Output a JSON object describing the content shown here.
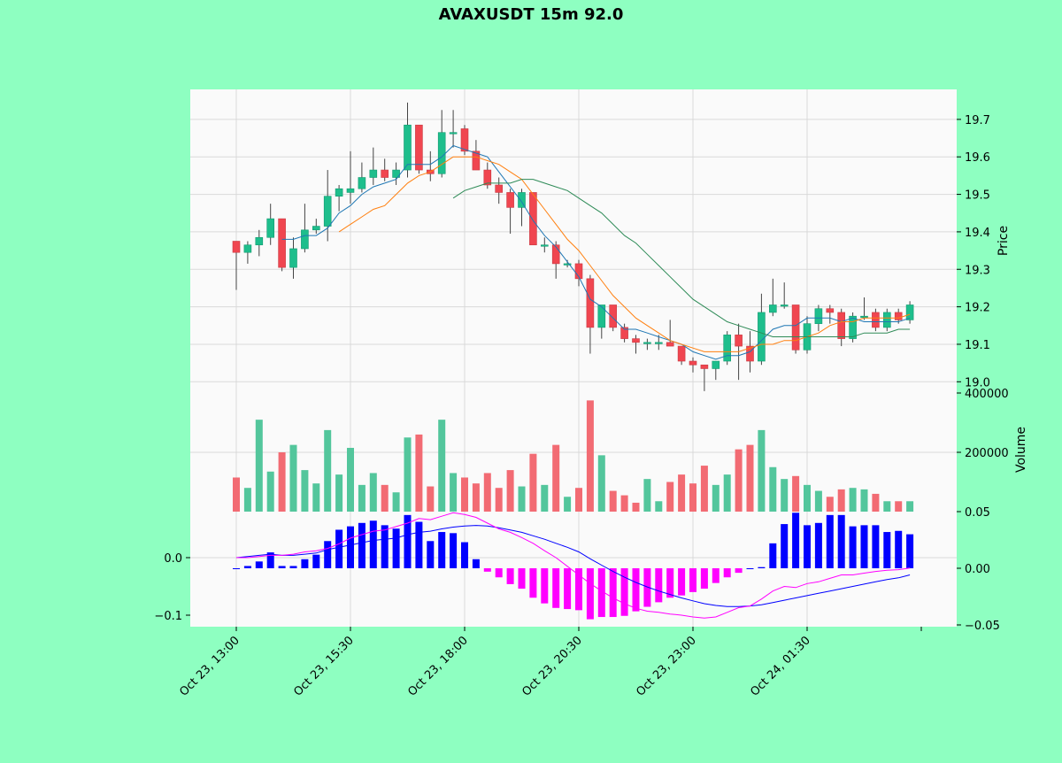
{
  "title": "AVAXUSDT 15m 92.0",
  "colors": {
    "background": "#8effc1",
    "panel": "#fafafa",
    "grid": "#d9d9d9",
    "up": "#1ebe8c",
    "down": "#f04650",
    "wick": "#444444",
    "vol_up": "#53c69c",
    "vol_down": "#f26b73",
    "ma_fast": "#1f77b4",
    "ma_mid": "#ff7f0e",
    "ma_slow": "#2e8b57",
    "macd_line": "#0000ff",
    "signal_line": "#ff00ff",
    "hist_pos": "#0000ff",
    "hist_neg": "#ff00ff"
  },
  "chart_data": {
    "type": "candlestick",
    "x_tick_labels": [
      "Oct 23, 13:00",
      "Oct 23, 15:30",
      "Oct 23, 18:00",
      "Oct 23, 20:30",
      "Oct 23, 23:00",
      "Oct 24, 01:30"
    ],
    "x_tick_indices": [
      0,
      10,
      20,
      30,
      40,
      50
    ],
    "price": {
      "ylabel": "Price",
      "ylim": [
        18.97,
        19.78
      ],
      "ticks": [
        "19.0",
        "19.1",
        "19.2",
        "19.3",
        "19.4",
        "19.5",
        "19.6",
        "19.7"
      ],
      "tick_values": [
        19.0,
        19.1,
        19.2,
        19.3,
        19.4,
        19.5,
        19.6,
        19.7
      ],
      "candles": [
        [
          19.375,
          19.375,
          19.245,
          19.345
        ],
        [
          19.345,
          19.375,
          19.315,
          19.365
        ],
        [
          19.365,
          19.405,
          19.335,
          19.385
        ],
        [
          19.385,
          19.475,
          19.365,
          19.435
        ],
        [
          19.435,
          19.435,
          19.295,
          19.305
        ],
        [
          19.305,
          19.385,
          19.275,
          19.355
        ],
        [
          19.355,
          19.475,
          19.345,
          19.405
        ],
        [
          19.405,
          19.435,
          19.395,
          19.415
        ],
        [
          19.415,
          19.565,
          19.375,
          19.495
        ],
        [
          19.495,
          19.525,
          19.455,
          19.515
        ],
        [
          19.505,
          19.615,
          19.475,
          19.515
        ],
        [
          19.515,
          19.585,
          19.505,
          19.545
        ],
        [
          19.545,
          19.625,
          19.525,
          19.565
        ],
        [
          19.565,
          19.595,
          19.535,
          19.545
        ],
        [
          19.545,
          19.585,
          19.525,
          19.565
        ],
        [
          19.565,
          19.745,
          19.545,
          19.685
        ],
        [
          19.685,
          19.685,
          19.555,
          19.565
        ],
        [
          19.565,
          19.615,
          19.535,
          19.555
        ],
        [
          19.555,
          19.725,
          19.545,
          19.665
        ],
        [
          19.665,
          19.725,
          19.625,
          19.665
        ],
        [
          19.675,
          19.685,
          19.605,
          19.615
        ],
        [
          19.615,
          19.645,
          19.565,
          19.565
        ],
        [
          19.565,
          19.585,
          19.515,
          19.525
        ],
        [
          19.525,
          19.545,
          19.475,
          19.505
        ],
        [
          19.505,
          19.515,
          19.395,
          19.465
        ],
        [
          19.465,
          19.515,
          19.415,
          19.505
        ],
        [
          19.505,
          19.505,
          19.365,
          19.365
        ],
        [
          19.365,
          19.385,
          19.345,
          19.365
        ],
        [
          19.365,
          19.375,
          19.275,
          19.315
        ],
        [
          19.315,
          19.325,
          19.305,
          19.315
        ],
        [
          19.315,
          19.325,
          19.255,
          19.275
        ],
        [
          19.275,
          19.285,
          19.075,
          19.145
        ],
        [
          19.145,
          19.205,
          19.115,
          19.205
        ],
        [
          19.205,
          19.205,
          19.135,
          19.145
        ],
        [
          19.145,
          19.155,
          19.105,
          19.115
        ],
        [
          19.115,
          19.125,
          19.075,
          19.105
        ],
        [
          19.105,
          19.115,
          19.085,
          19.105
        ],
        [
          19.105,
          19.125,
          19.085,
          19.105
        ],
        [
          19.105,
          19.165,
          19.095,
          19.095
        ],
        [
          19.095,
          19.095,
          19.045,
          19.055
        ],
        [
          19.055,
          19.065,
          19.025,
          19.045
        ],
        [
          19.045,
          19.045,
          18.975,
          19.035
        ],
        [
          19.035,
          19.055,
          19.005,
          19.055
        ],
        [
          19.055,
          19.135,
          19.045,
          19.125
        ],
        [
          19.125,
          19.155,
          19.005,
          19.095
        ],
        [
          19.095,
          19.135,
          19.025,
          19.055
        ],
        [
          19.055,
          19.235,
          19.045,
          19.185
        ],
        [
          19.185,
          19.275,
          19.175,
          19.205
        ],
        [
          19.205,
          19.265,
          19.195,
          19.205
        ],
        [
          19.205,
          19.205,
          19.075,
          19.085
        ],
        [
          19.085,
          19.175,
          19.075,
          19.155
        ],
        [
          19.155,
          19.205,
          19.135,
          19.195
        ],
        [
          19.195,
          19.205,
          19.155,
          19.185
        ],
        [
          19.185,
          19.195,
          19.095,
          19.115
        ],
        [
          19.115,
          19.185,
          19.105,
          19.175
        ],
        [
          19.175,
          19.225,
          19.165,
          19.175
        ],
        [
          19.185,
          19.195,
          19.135,
          19.145
        ],
        [
          19.145,
          19.195,
          19.135,
          19.185
        ],
        [
          19.185,
          19.195,
          19.155,
          19.165
        ],
        [
          19.165,
          19.215,
          19.155,
          19.205
        ]
      ],
      "ma_fast": [
        null,
        null,
        null,
        null,
        19.38,
        19.38,
        19.39,
        19.39,
        19.41,
        19.45,
        19.47,
        19.5,
        19.52,
        19.53,
        19.54,
        19.58,
        19.58,
        19.58,
        19.6,
        19.63,
        19.62,
        19.61,
        19.6,
        19.56,
        19.52,
        19.48,
        19.43,
        19.39,
        19.36,
        19.32,
        19.28,
        19.22,
        19.2,
        19.17,
        19.14,
        19.14,
        19.13,
        19.12,
        19.11,
        19.1,
        19.08,
        19.07,
        19.06,
        19.07,
        19.07,
        19.08,
        19.11,
        19.14,
        19.15,
        19.15,
        19.17,
        19.17,
        19.17,
        19.16,
        19.17,
        19.16,
        19.16,
        19.16,
        19.16,
        19.17
      ],
      "ma_mid": [
        null,
        null,
        null,
        null,
        null,
        null,
        null,
        null,
        null,
        19.4,
        19.42,
        19.44,
        19.46,
        19.47,
        19.5,
        19.53,
        19.55,
        19.56,
        19.58,
        19.6,
        19.6,
        19.6,
        19.59,
        19.58,
        19.56,
        19.54,
        19.5,
        19.46,
        19.42,
        19.38,
        19.35,
        19.31,
        19.27,
        19.23,
        19.2,
        19.17,
        19.15,
        19.13,
        19.11,
        19.1,
        19.09,
        19.08,
        19.08,
        19.08,
        19.08,
        19.09,
        19.1,
        19.1,
        19.11,
        19.11,
        19.12,
        19.13,
        19.15,
        19.16,
        19.16,
        19.17,
        19.17,
        19.17,
        19.17,
        19.18
      ],
      "ma_slow": [
        null,
        null,
        null,
        null,
        null,
        null,
        null,
        null,
        null,
        null,
        null,
        null,
        null,
        null,
        null,
        null,
        null,
        null,
        null,
        19.49,
        19.51,
        19.52,
        19.53,
        19.53,
        19.53,
        19.54,
        19.54,
        19.53,
        19.52,
        19.51,
        19.49,
        19.47,
        19.45,
        19.42,
        19.39,
        19.37,
        19.34,
        19.31,
        19.28,
        19.25,
        19.22,
        19.2,
        19.18,
        19.16,
        19.15,
        19.14,
        19.13,
        19.12,
        19.12,
        19.12,
        19.12,
        19.12,
        19.12,
        19.12,
        19.12,
        19.13,
        19.13,
        19.13,
        19.14,
        19.14
      ]
    },
    "volume": {
      "ylabel": "Volume",
      "ylim": [
        0,
        400000
      ],
      "ticks": [
        "200000",
        "400000"
      ],
      "tick_values": [
        200000,
        400000
      ],
      "values": [
        115000,
        80000,
        310000,
        135000,
        200000,
        225000,
        140000,
        95000,
        275000,
        125000,
        215000,
        90000,
        130000,
        90000,
        65000,
        250000,
        260000,
        85000,
        310000,
        130000,
        115000,
        95000,
        130000,
        80000,
        140000,
        85000,
        195000,
        90000,
        225000,
        50000,
        80000,
        375000,
        190000,
        70000,
        55000,
        30000,
        110000,
        35000,
        100000,
        125000,
        95000,
        155000,
        90000,
        125000,
        210000,
        225000,
        275000,
        150000,
        110000,
        120000,
        90000,
        70000,
        50000,
        75000,
        80000,
        75000,
        60000,
        35000,
        35000,
        35000
      ]
    },
    "macd": {
      "ylim": [
        -0.12,
        0.08
      ],
      "left_ticks": [
        "0.0",
        "−0.1"
      ],
      "left_tick_values": [
        0.0,
        -0.1
      ],
      "right_ticks": [
        "0.05",
        "0.00",
        "−0.05"
      ],
      "right_tick_values": [
        0.05,
        0.0,
        -0.05
      ],
      "macd_line": [
        0.0,
        0.002,
        0.004,
        0.006,
        0.004,
        0.004,
        0.006,
        0.008,
        0.014,
        0.018,
        0.022,
        0.026,
        0.03,
        0.032,
        0.034,
        0.04,
        0.044,
        0.046,
        0.05,
        0.053,
        0.055,
        0.056,
        0.055,
        0.052,
        0.048,
        0.044,
        0.038,
        0.032,
        0.025,
        0.018,
        0.01,
        -0.002,
        -0.013,
        -0.024,
        -0.034,
        -0.043,
        -0.051,
        -0.058,
        -0.064,
        -0.07,
        -0.075,
        -0.08,
        -0.083,
        -0.085,
        -0.085,
        -0.084,
        -0.082,
        -0.078,
        -0.074,
        -0.07,
        -0.066,
        -0.062,
        -0.058,
        -0.054,
        -0.05,
        -0.046,
        -0.042,
        -0.038,
        -0.035,
        -0.03
      ],
      "signal_line": [
        0.0,
        0.0,
        0.002,
        0.004,
        0.004,
        0.006,
        0.01,
        0.012,
        0.016,
        0.024,
        0.034,
        0.04,
        0.046,
        0.048,
        0.054,
        0.06,
        0.068,
        0.066,
        0.072,
        0.078,
        0.075,
        0.07,
        0.06,
        0.05,
        0.044,
        0.035,
        0.025,
        0.012,
        0.0,
        -0.015,
        -0.03,
        -0.045,
        -0.058,
        -0.07,
        -0.08,
        -0.088,
        -0.093,
        -0.095,
        -0.098,
        -0.1,
        -0.103,
        -0.105,
        -0.103,
        -0.095,
        -0.087,
        -0.084,
        -0.072,
        -0.058,
        -0.05,
        -0.052,
        -0.045,
        -0.042,
        -0.036,
        -0.03,
        -0.03,
        -0.027,
        -0.024,
        -0.022,
        -0.021,
        -0.018
      ],
      "histogram": [
        0.0,
        0.002,
        0.006,
        0.014,
        0.002,
        0.002,
        0.008,
        0.012,
        0.024,
        0.034,
        0.037,
        0.04,
        0.042,
        0.038,
        0.035,
        0.047,
        0.041,
        0.024,
        0.032,
        0.031,
        0.023,
        0.008,
        -0.003,
        -0.008,
        -0.014,
        -0.018,
        -0.026,
        -0.031,
        -0.035,
        -0.036,
        -0.037,
        -0.045,
        -0.043,
        -0.043,
        -0.042,
        -0.038,
        -0.034,
        -0.03,
        -0.026,
        -0.024,
        -0.021,
        -0.018,
        -0.013,
        -0.008,
        -0.004,
        0.0,
        0.001,
        0.022,
        0.039,
        0.049,
        0.038,
        0.04,
        0.047,
        0.047,
        0.037,
        0.038,
        0.038,
        0.032,
        0.033,
        0.03
      ]
    }
  }
}
